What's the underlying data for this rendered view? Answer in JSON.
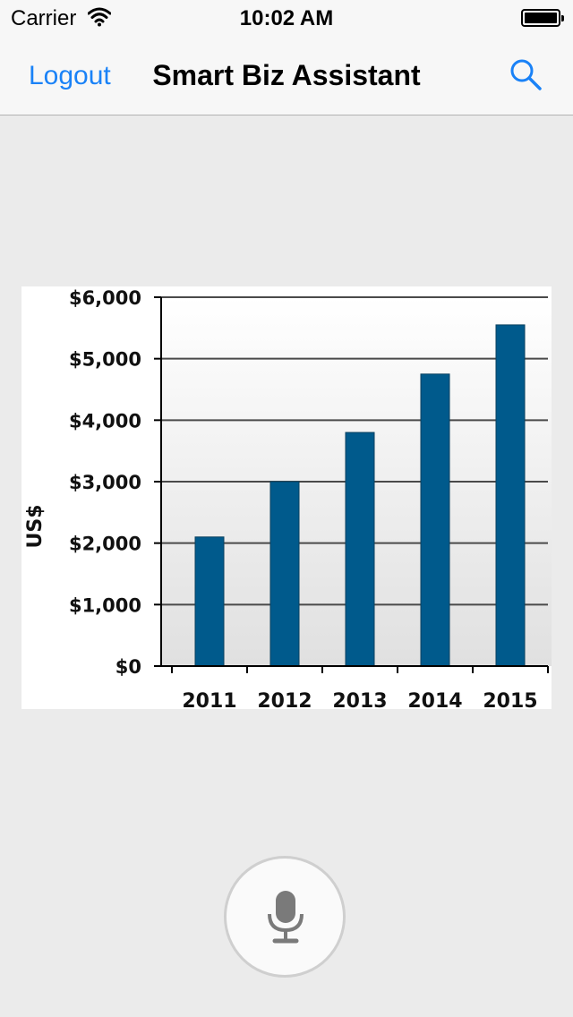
{
  "status_bar": {
    "carrier": "Carrier",
    "time": "10:02 AM",
    "wifi_icon": "wifi-icon",
    "battery_icon": "battery-icon"
  },
  "nav": {
    "logout_label": "Logout",
    "title": "Smart Biz Assistant",
    "search_icon": "search-icon",
    "accent_color": "#1a82f7"
  },
  "chart_data": {
    "type": "bar",
    "categories": [
      "2011",
      "2012",
      "2013",
      "2014",
      "2015"
    ],
    "values": [
      2100,
      3000,
      3800,
      4750,
      5550
    ],
    "ylabel": "US$",
    "ylim": [
      0,
      6000
    ],
    "yticks": [
      0,
      1000,
      2000,
      3000,
      4000,
      5000,
      6000
    ],
    "ytick_labels": [
      "$0",
      "$1,000",
      "$2,000",
      "$3,000",
      "$4,000",
      "$5,000",
      "$6,000"
    ],
    "grid": true,
    "bar_color": "#005a8c",
    "plot_background": "gradient white to light gray"
  },
  "mic_button": {
    "icon": "microphone-icon"
  }
}
